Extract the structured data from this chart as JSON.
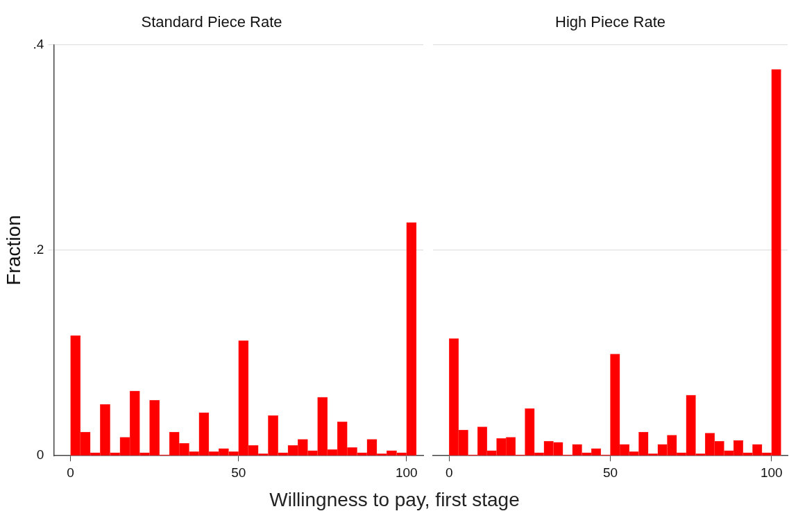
{
  "chart_data": [
    {
      "type": "histogram",
      "title": "Standard Piece Rate",
      "xlabel": "Willingness to pay, first stage",
      "ylabel": "Fraction",
      "color": "#ff0000",
      "bins": [
        0,
        2.94,
        5.88,
        8.82,
        11.76,
        14.71,
        17.65,
        20.59,
        23.53,
        26.47,
        29.41,
        32.35,
        35.29,
        38.24,
        41.18,
        44.12,
        47.06,
        50,
        52.94,
        55.88,
        58.82,
        61.76,
        64.71,
        67.65,
        70.59,
        73.53,
        76.47,
        79.41,
        82.35,
        85.29,
        88.24,
        91.18,
        94.12,
        97.06,
        100,
        102.94
      ],
      "values": [
        0.117,
        0.023,
        0.003,
        0.05,
        0.003,
        0.018,
        0.063,
        0.003,
        0.054,
        0.001,
        0.023,
        0.012,
        0.004,
        0.042,
        0.004,
        0.007,
        0.004,
        0.112,
        0.01,
        0.002,
        0.039,
        0.003,
        0.01,
        0.016,
        0.005,
        0.057,
        0.006,
        0.033,
        0.008,
        0.003,
        0.016,
        0.002,
        0.005,
        0.003,
        0.227
      ],
      "xlim": [
        -5,
        105
      ],
      "xticks": [
        0,
        50,
        100
      ],
      "ylim": [
        0,
        0.4
      ],
      "yticks": [
        {
          "value": 0,
          "label": "0"
        },
        {
          "value": 0.2,
          "label": ".2"
        },
        {
          "value": 0.4,
          "label": ".4"
        }
      ],
      "grid": "y"
    },
    {
      "type": "histogram",
      "title": "High Piece Rate",
      "color": "#ff0000",
      "bins": [
        0,
        2.94,
        5.88,
        8.82,
        11.76,
        14.71,
        17.65,
        20.59,
        23.53,
        26.47,
        29.41,
        32.35,
        35.29,
        38.24,
        41.18,
        44.12,
        47.06,
        50,
        52.94,
        55.88,
        58.82,
        61.76,
        64.71,
        67.65,
        70.59,
        73.53,
        76.47,
        79.41,
        82.35,
        85.29,
        88.24,
        91.18,
        94.12,
        97.06,
        100,
        102.94
      ],
      "values": [
        0.114,
        0.025,
        0.001,
        0.028,
        0.005,
        0.017,
        0.018,
        0.001,
        0.046,
        0.003,
        0.014,
        0.013,
        0.001,
        0.011,
        0.003,
        0.007,
        0.001,
        0.099,
        0.011,
        0.004,
        0.023,
        0.002,
        0.011,
        0.02,
        0.003,
        0.059,
        0.002,
        0.022,
        0.014,
        0.005,
        0.015,
        0.003,
        0.011,
        0.003,
        0.376
      ],
      "xlim": [
        -5,
        105
      ],
      "xticks": [
        0,
        50,
        100
      ],
      "ylim": [
        0,
        0.4
      ],
      "yticks": [
        {
          "value": 0,
          "label": null
        },
        {
          "value": 0.2,
          "label": null
        },
        {
          "value": 0.4,
          "label": null
        }
      ],
      "grid": "y",
      "tick_labels": "x"
    }
  ]
}
